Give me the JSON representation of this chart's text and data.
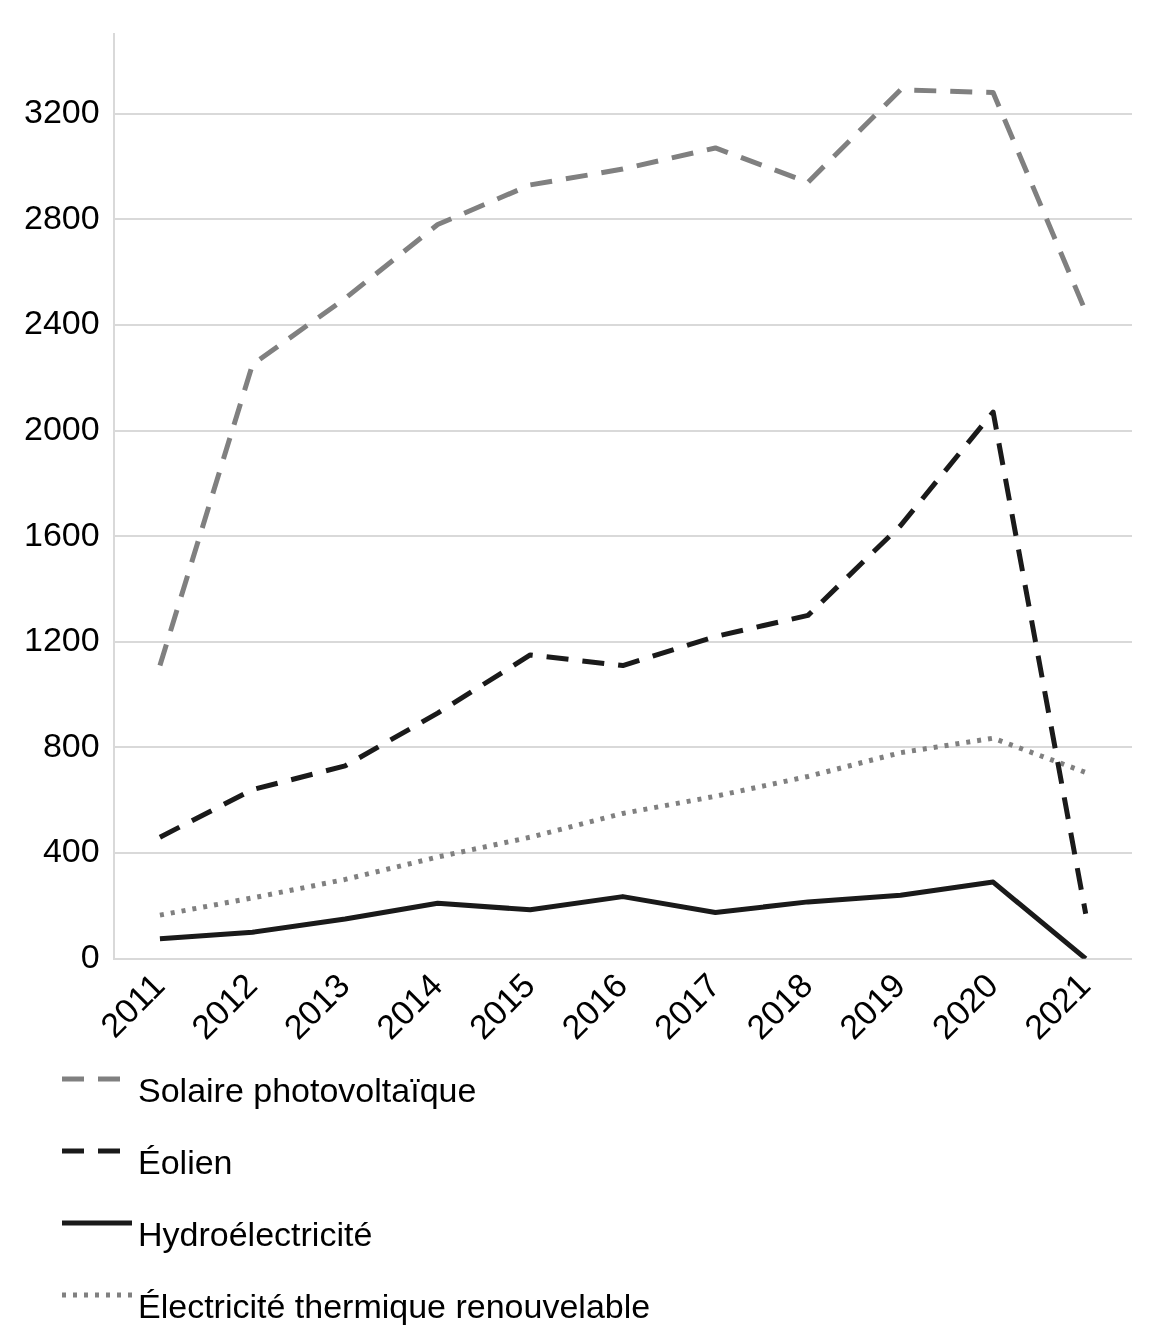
{
  "chart_data": {
    "type": "line",
    "categories": [
      "2011",
      "2012",
      "2013",
      "2014",
      "2015",
      "2016",
      "2017",
      "2018",
      "2019",
      "2020",
      "2021"
    ],
    "ylim": [
      0,
      3500
    ],
    "yticks": [
      0,
      400,
      800,
      1200,
      1600,
      2000,
      2400,
      2800,
      3200
    ],
    "grid": "y",
    "legend": "bottom",
    "series": [
      {
        "name": "Solaire photovoltaïque",
        "color": "#808080",
        "line_style": "dashed",
        "values": [
          1110,
          2250,
          2500,
          2780,
          2930,
          2990,
          3070,
          2940,
          3290,
          3280,
          2450
        ]
      },
      {
        "name": "Éolien",
        "color": "#1a1a1a",
        "line_style": "dashed",
        "values": [
          460,
          640,
          730,
          930,
          1150,
          1110,
          1220,
          1300,
          1640,
          2070,
          170
        ]
      },
      {
        "name": "Hydroélectricité",
        "color": "#1a1a1a",
        "line_style": "solid",
        "values": [
          75,
          100,
          150,
          210,
          185,
          235,
          175,
          215,
          240,
          290,
          0
        ]
      },
      {
        "name": "Électricité thermique renouvelable",
        "color": "#808080",
        "line_style": "dotted",
        "values": [
          165,
          230,
          300,
          385,
          460,
          550,
          615,
          690,
          780,
          835,
          705
        ]
      }
    ]
  }
}
